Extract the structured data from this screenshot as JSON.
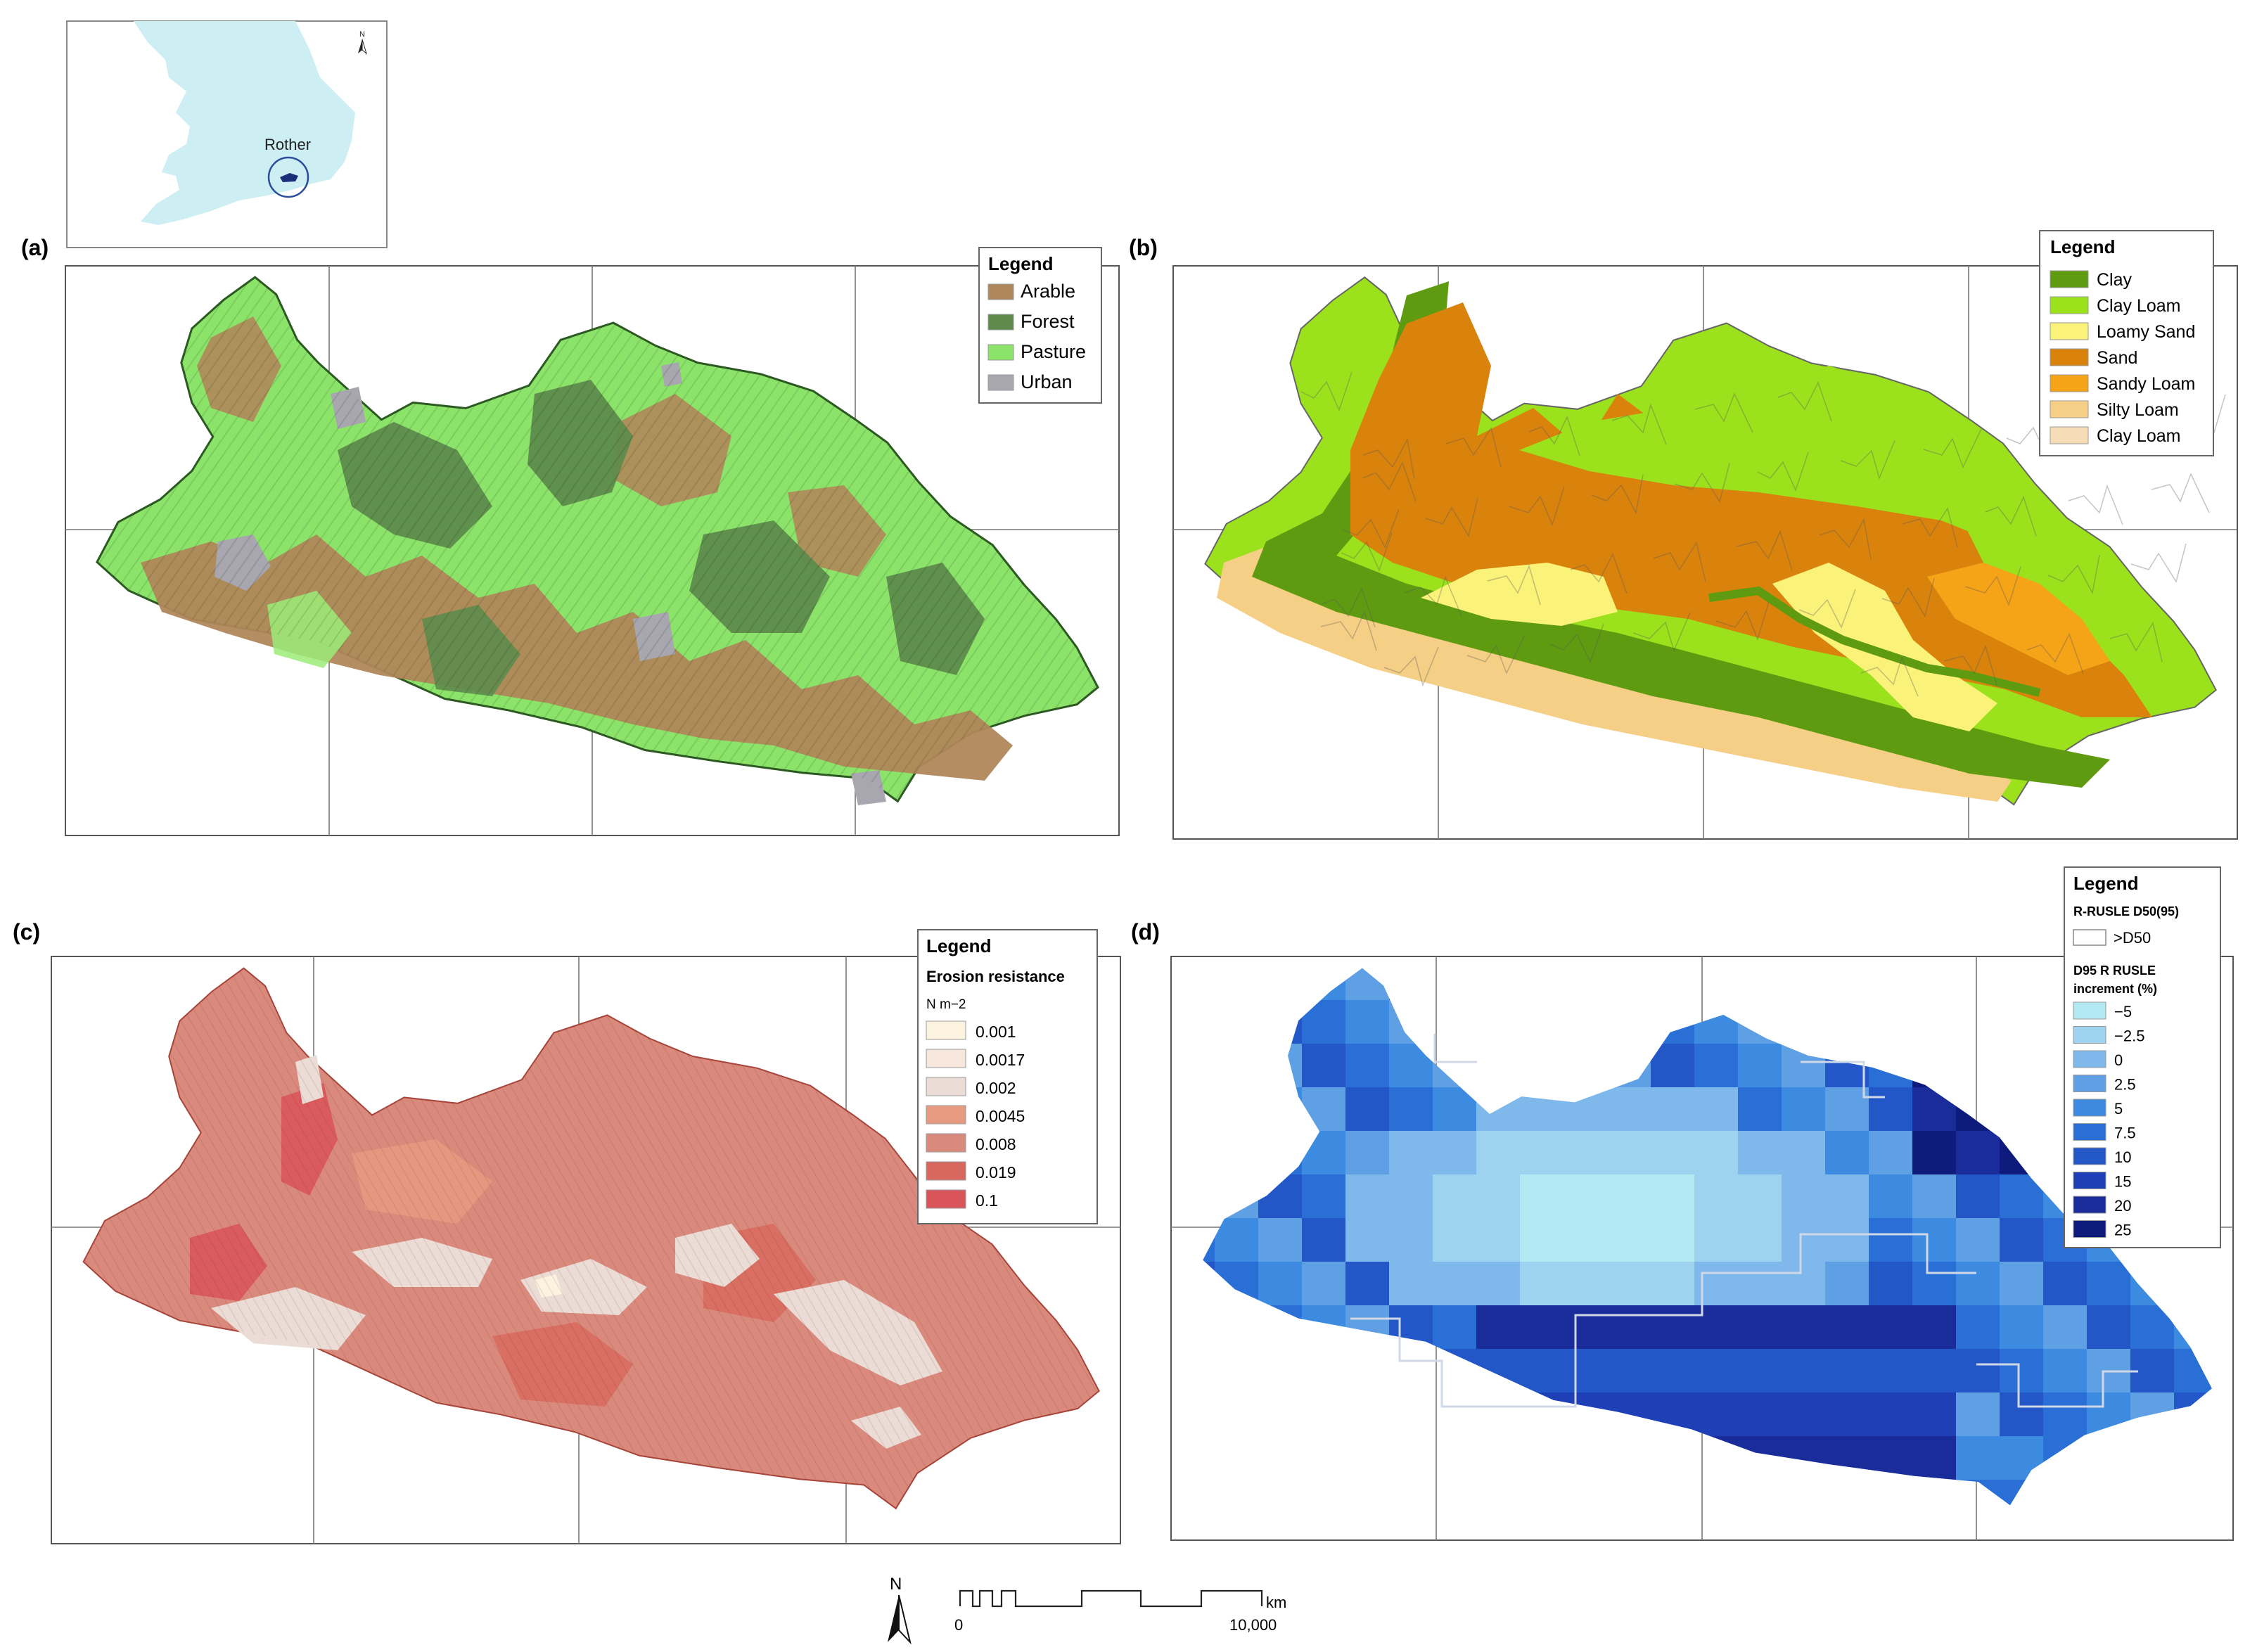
{
  "inset": {
    "place_label": "Rother",
    "north_label": "N",
    "colors": {
      "sea": "#ffffff",
      "land": "#cdeef3",
      "catchment": "#1a2f7a"
    }
  },
  "panels": [
    {
      "id": "a",
      "label": "(a)",
      "legend": {
        "title": "Legend",
        "items": [
          {
            "label": "Arable",
            "color": "#b0875a"
          },
          {
            "label": "Forest",
            "color": "#5e8b4c"
          },
          {
            "label": "Pasture",
            "color": "#8be36a"
          },
          {
            "label": "Urban",
            "color": "#a8a6ae"
          }
        ]
      }
    },
    {
      "id": "b",
      "label": "(b)",
      "legend": {
        "title": "Legend",
        "items": [
          {
            "label": "Clay",
            "color": "#5e9b10"
          },
          {
            "label": "Clay Loam",
            "color": "#9be21c"
          },
          {
            "label": "Loamy Sand",
            "color": "#fbf27a"
          },
          {
            "label": "Sand",
            "color": "#d9830c"
          },
          {
            "label": "Sandy Loam",
            "color": "#f5a418"
          },
          {
            "label": "Silty Loam",
            "color": "#f6cf86"
          },
          {
            "label": "Clay Loam",
            "color": "#f6ddb8"
          }
        ]
      }
    },
    {
      "id": "c",
      "label": "(c)",
      "legend": {
        "title": "Legend",
        "subtitle": "Erosion resistance",
        "unit": "N m−2",
        "items": [
          {
            "label": "0.001",
            "color": "#fbf3e0"
          },
          {
            "label": "0.0017",
            "color": "#f7e6dc"
          },
          {
            "label": "0.002",
            "color": "#ebdcd6"
          },
          {
            "label": "0.0045",
            "color": "#e69a80"
          },
          {
            "label": "0.008",
            "color": "#d98a7c"
          },
          {
            "label": "0.019",
            "color": "#d8685e"
          },
          {
            "label": "0.1",
            "color": "#d9555a"
          }
        ]
      }
    },
    {
      "id": "d",
      "label": "(d)",
      "legend": {
        "title": "Legend",
        "section1": "R-RUSLE D50(95)",
        "d50_label": ">D50",
        "section2_line1": "D95 R RUSLE",
        "section2_line2": "increment  (%)",
        "items": [
          {
            "label": "−5",
            "color": "#b3e9f2"
          },
          {
            "label": "−2.5",
            "color": "#9ed3ef"
          },
          {
            "label": "0",
            "color": "#7fb8ea"
          },
          {
            "label": "2.5",
            "color": "#5f9fe3"
          },
          {
            "label": "5",
            "color": "#3d8be0"
          },
          {
            "label": "7.5",
            "color": "#2a6fd6"
          },
          {
            "label": "10",
            "color": "#2356c6"
          },
          {
            "label": "15",
            "color": "#1e3fb5"
          },
          {
            "label": "20",
            "color": "#1a2c9a"
          },
          {
            "label": "25",
            "color": "#0f1b7c"
          }
        ]
      }
    }
  ],
  "scale_bar": {
    "north_label": "N",
    "start_label": "0",
    "end_label": "10,000",
    "unit_label": "km"
  }
}
